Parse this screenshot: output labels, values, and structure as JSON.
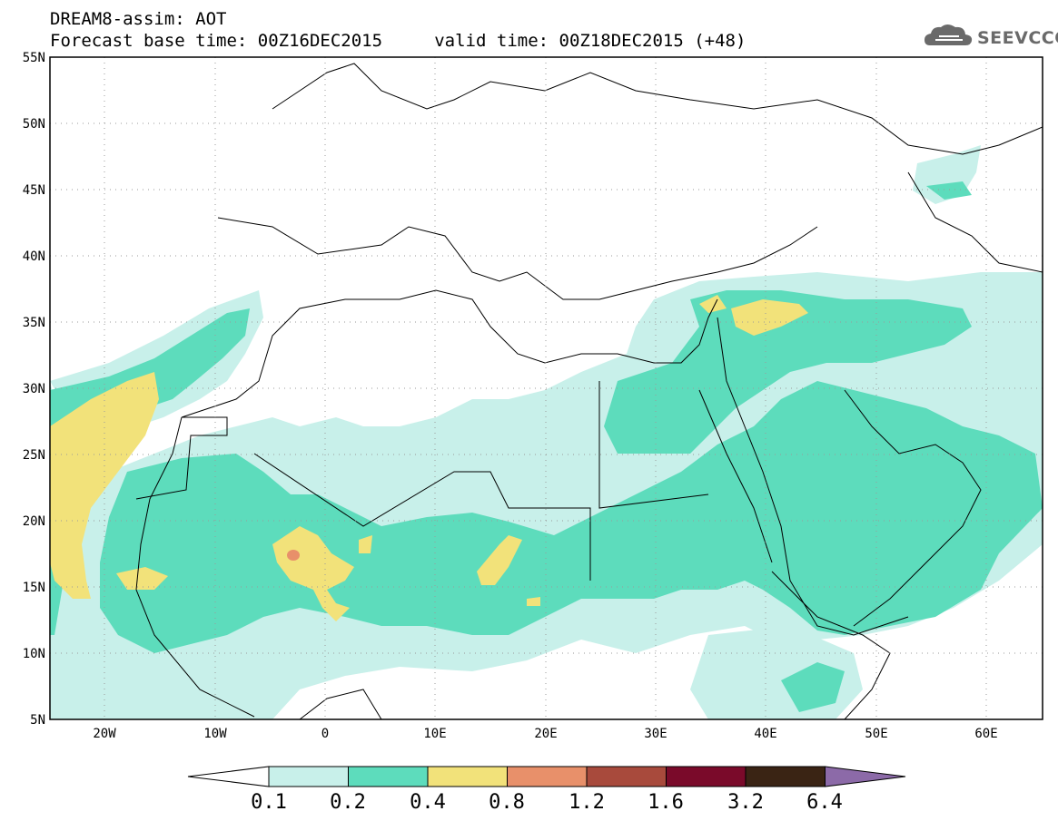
{
  "title": {
    "line1": "DREAM8-assim: AOT",
    "line2": "Forecast base time: 00Z16DEC2015     valid time: 00Z18DEC2015 (+48)"
  },
  "logo": {
    "text": "SEEVCCC",
    "icon": "cloud-icon"
  },
  "map": {
    "lon_range": [
      -25,
      65
    ],
    "lat_range": [
      5,
      55
    ],
    "lat_ticks": [
      "55N",
      "50N",
      "45N",
      "40N",
      "35N",
      "30N",
      "25N",
      "20N",
      "15N",
      "10N",
      "5N"
    ],
    "lon_ticks": [
      "20W",
      "10W",
      "0",
      "10E",
      "20E",
      "30E",
      "40E",
      "50E",
      "60E"
    ],
    "grid": "dotted"
  },
  "colorbar": {
    "labels": [
      "0.1",
      "0.2",
      "0.4",
      "0.8",
      "1.2",
      "1.6",
      "3.2",
      "6.4"
    ],
    "colors": [
      "#c8f0ea",
      "#5ddcbc",
      "#f2e27a",
      "#e8906a",
      "#a84a3c",
      "#7a0a2a",
      "#3a2414",
      "#8c6aa8"
    ]
  }
}
